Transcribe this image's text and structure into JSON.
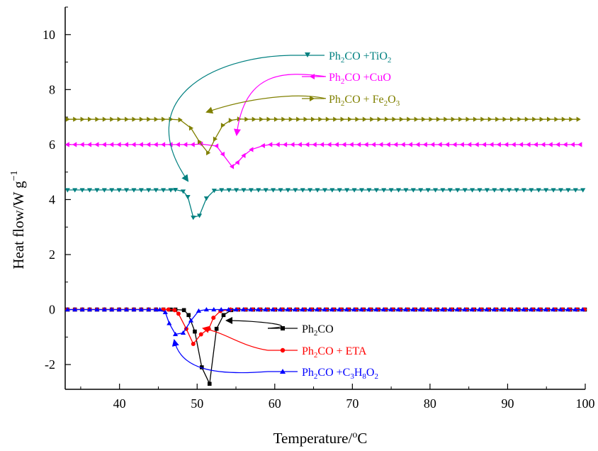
{
  "chart_data": {
    "type": "line",
    "xlabel": "Temperature/°C",
    "ylabel": "Heat flow/W g⁻¹",
    "xlim": [
      33,
      100
    ],
    "ylim": [
      -2.9,
      11
    ],
    "x_ticks": [
      40,
      50,
      60,
      70,
      80,
      90,
      100
    ],
    "y_ticks": [
      -2,
      0,
      2,
      4,
      6,
      8,
      10
    ],
    "grid": false,
    "legend": "annotations with arrows",
    "series": [
      {
        "name": "Ph₂CO +TiO₂",
        "color": "#008080",
        "marker": "triangle-down",
        "baseline": 4.35,
        "dip": [
          [
            47.2,
            4.36
          ],
          [
            48.2,
            4.3
          ],
          [
            48.8,
            4.1
          ],
          [
            49.5,
            3.35
          ],
          [
            50.3,
            3.42
          ],
          [
            51.2,
            4.05
          ],
          [
            52.2,
            4.33
          ]
        ]
      },
      {
        "name": "Ph₂CO +CuO",
        "color": "#ff00ff",
        "marker": "triangle-left",
        "baseline": 6.0,
        "dip": [
          [
            50.5,
            6.02
          ],
          [
            52.5,
            5.95
          ],
          [
            53.3,
            5.65
          ],
          [
            54.5,
            5.2
          ],
          [
            55.2,
            5.35
          ],
          [
            56,
            5.6
          ],
          [
            57,
            5.82
          ],
          [
            58.5,
            5.96
          ]
        ]
      },
      {
        "name": "Ph₂CO + Fe₂O₃",
        "color": "#808000",
        "marker": "triangle-right",
        "baseline": 6.92,
        "dip": [
          [
            47.8,
            6.9
          ],
          [
            49.2,
            6.6
          ],
          [
            50.3,
            6.1
          ],
          [
            51.4,
            5.7
          ],
          [
            52.3,
            6.2
          ],
          [
            53.3,
            6.7
          ],
          [
            54.3,
            6.88
          ],
          [
            55.4,
            6.93
          ]
        ]
      },
      {
        "name": "Ph₂CO",
        "color": "#000000",
        "marker": "square",
        "baseline": 0.0,
        "dip": [
          [
            47.2,
            0.0
          ],
          [
            48.3,
            -0.02
          ],
          [
            48.9,
            -0.2
          ],
          [
            49.7,
            -0.8
          ],
          [
            50.6,
            -2.1
          ],
          [
            51.6,
            -2.7
          ],
          [
            52.5,
            -0.7
          ],
          [
            53.4,
            -0.2
          ],
          [
            54.4,
            -0.02
          ],
          [
            55.3,
            0.0
          ]
        ]
      },
      {
        "name": "Ph₂CO + ETA",
        "color": "#ff0000",
        "marker": "circle",
        "baseline": 0.0,
        "dip": [
          [
            46.3,
            0.0
          ],
          [
            47.1,
            -0.02
          ],
          [
            47.6,
            -0.15
          ],
          [
            48.6,
            -0.7
          ],
          [
            49.5,
            -1.25
          ],
          [
            50.5,
            -0.9
          ],
          [
            51.5,
            -0.7
          ],
          [
            52.1,
            -0.3
          ],
          [
            53,
            -0.05
          ],
          [
            54.3,
            0.0
          ]
        ]
      },
      {
        "name": "Ph₂CO +C₃H₈O₂",
        "color": "#0000ff",
        "marker": "triangle-up",
        "baseline": 0.0,
        "dip": [
          [
            45.2,
            0.0
          ],
          [
            45.9,
            -0.1
          ],
          [
            46.4,
            -0.5
          ],
          [
            47.2,
            -0.9
          ],
          [
            48.2,
            -0.85
          ],
          [
            49.2,
            -0.4
          ],
          [
            50.2,
            -0.05
          ],
          [
            51.2,
            0.0
          ]
        ]
      }
    ]
  }
}
